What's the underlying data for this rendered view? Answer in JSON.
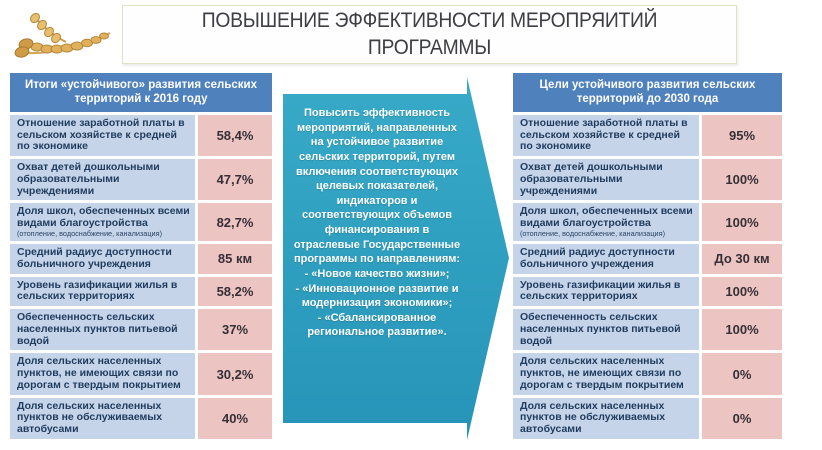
{
  "slide": {
    "title": "ПОВЫШЕНИЕ ЭФФЕКТИВНОСТИ МЕРОПРЯИТИЙ ПРОГРАММЫ"
  },
  "icons": {
    "wheat": "wheat-icon"
  },
  "colors": {
    "header_blue": "#4f81bd",
    "label_blue": "#c5d4e8",
    "value_pink": "#ecc5c3",
    "arrow_teal": "#2da2c2",
    "label_text": "#1f3b5e",
    "title_border_green": "#dde4c3"
  },
  "left_table": {
    "header": "Итоги «устойчивого» развития сельских территорий к 2016 году",
    "rows": [
      {
        "label": "Отношение заработной платы в сельском хозяйстве к средней по экономике",
        "note": "",
        "value": "58,4%"
      },
      {
        "label": "Охват детей дошкольными образовательными учреждениями",
        "note": "",
        "value": "47,7%"
      },
      {
        "label": "Доля школ, обеспеченных всеми видами благоустройства",
        "note": "(отопление, водоснабжение, канализация)",
        "value": "82,7%"
      },
      {
        "label": "Средний радиус доступности больничного учреждения",
        "note": "",
        "value": "85 км"
      },
      {
        "label": "Уровень газификации жилья в сельских территориях",
        "note": "",
        "value": "58,2%"
      },
      {
        "label": "Обеспеченность сельских населенных пунктов питьевой водой",
        "note": "",
        "value": "37%"
      },
      {
        "label": "Доля сельских населенных пунктов, не имеющих связи по дорогам с твердым покрытием",
        "note": "",
        "value": "30,2%"
      },
      {
        "label": "Доля сельских населенных пунктов не обслуживаемых автобусами",
        "note": "",
        "value": "40%"
      }
    ]
  },
  "right_table": {
    "header": "Цели устойчивого развития сельских территорий до  2030 года",
    "rows": [
      {
        "label": "Отношение заработной платы в сельском хозяйстве к средней по экономике",
        "note": "",
        "value": "95%"
      },
      {
        "label": "Охват детей дошкольными образовательными учреждениями",
        "note": "",
        "value": "100%"
      },
      {
        "label": "Доля школ, обеспеченных всеми видами благоустройства",
        "note": "(отопление, водоснабжение, канализация)",
        "value": "100%"
      },
      {
        "label": "Средний радиус доступности больничного учреждения",
        "note": "",
        "value": "До 30 км"
      },
      {
        "label": "Уровень газификации жилья в сельских территориях",
        "note": "",
        "value": "100%"
      },
      {
        "label": "Обеспеченность сельских населенных пунктов питьевой водой",
        "note": "",
        "value": "100%"
      },
      {
        "label": "Доля сельских населенных пунктов, не имеющих связи по дорогам с твердым покрытием",
        "note": "",
        "value": "0%"
      },
      {
        "label": "Доля сельских населенных пунктов не обслуживаемых автобусами",
        "note": "",
        "value": "0%"
      }
    ]
  },
  "arrow": {
    "paragraph": "Повысить эффективность мероприятий, направленных на устойчивое развитие сельских территорий, путем включения соответствующих целевых показателей, индикаторов и соответствующих объемов финансирования в отраслевые Государственные программы по направлениям:",
    "items": [
      "-   «Новое качество жизни»;",
      "-   «Инновационное развитие и модернизация экономики»;",
      "-   «Сбалансированное региональное развитие»."
    ]
  }
}
